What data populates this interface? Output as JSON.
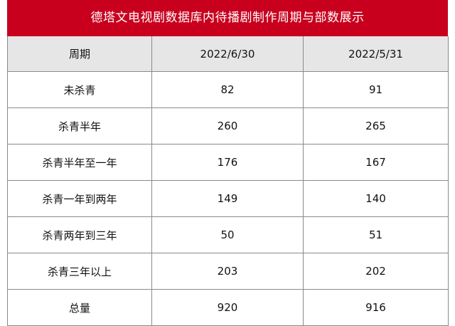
{
  "title": "德塔文电视剧数据库内待播剧制作周期与部数展示",
  "table": {
    "headers": [
      "周期",
      "2022/6/30",
      "2022/5/31"
    ],
    "rows": [
      [
        "未杀青",
        "82",
        "91"
      ],
      [
        "杀青半年",
        "260",
        "265"
      ],
      [
        "杀青半年至一年",
        "176",
        "167"
      ],
      [
        "杀青一年到两年",
        "149",
        "140"
      ],
      [
        "杀青两年到三年",
        "50",
        "51"
      ],
      [
        "杀青三年以上",
        "203",
        "202"
      ],
      [
        "总量",
        "920",
        "916"
      ]
    ]
  },
  "colors": {
    "title_bg": "#c8001e",
    "header_bg": "#e6e6e6",
    "border": "#8a8a8a"
  }
}
